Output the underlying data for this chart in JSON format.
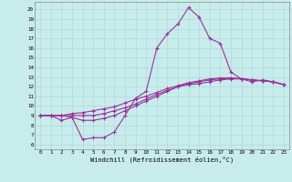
{
  "title": "",
  "xlabel": "Windchill (Refroidissement éolien,°C)",
  "ylabel": "",
  "x_ticks": [
    0,
    1,
    2,
    3,
    4,
    5,
    6,
    7,
    8,
    9,
    10,
    11,
    12,
    13,
    14,
    15,
    16,
    17,
    18,
    19,
    20,
    21,
    22,
    23
  ],
  "y_ticks": [
    6,
    7,
    8,
    9,
    10,
    11,
    12,
    13,
    14,
    15,
    16,
    17,
    18,
    19,
    20
  ],
  "xlim": [
    -0.5,
    23.5
  ],
  "ylim": [
    5.5,
    20.8
  ],
  "bg_color": "#c8ecec",
  "grid_color": "#b0d8d8",
  "line_color": "#993399",
  "series": [
    [
      9.0,
      9.0,
      8.5,
      8.8,
      6.5,
      6.7,
      6.7,
      7.3,
      9.0,
      10.8,
      11.5,
      16.0,
      17.5,
      18.5,
      20.2,
      19.2,
      17.0,
      16.5,
      13.5,
      12.8,
      12.5,
      12.7,
      12.5,
      12.2
    ],
    [
      9.0,
      9.0,
      9.0,
      9.0,
      9.0,
      9.0,
      9.2,
      9.5,
      9.8,
      10.2,
      10.7,
      11.2,
      11.6,
      12.0,
      12.3,
      12.5,
      12.7,
      12.8,
      12.9,
      12.8,
      12.7,
      12.6,
      12.5,
      12.2
    ],
    [
      9.0,
      9.0,
      9.0,
      9.2,
      9.3,
      9.5,
      9.7,
      9.9,
      10.3,
      10.7,
      11.0,
      11.4,
      11.8,
      12.1,
      12.4,
      12.6,
      12.8,
      12.9,
      12.9,
      12.8,
      12.7,
      12.6,
      12.5,
      12.2
    ],
    [
      9.0,
      9.0,
      9.0,
      8.8,
      8.5,
      8.5,
      8.7,
      9.0,
      9.5,
      10.0,
      10.5,
      11.0,
      11.5,
      12.0,
      12.2,
      12.3,
      12.5,
      12.7,
      12.8,
      12.8,
      12.7,
      12.6,
      12.5,
      12.2
    ]
  ]
}
